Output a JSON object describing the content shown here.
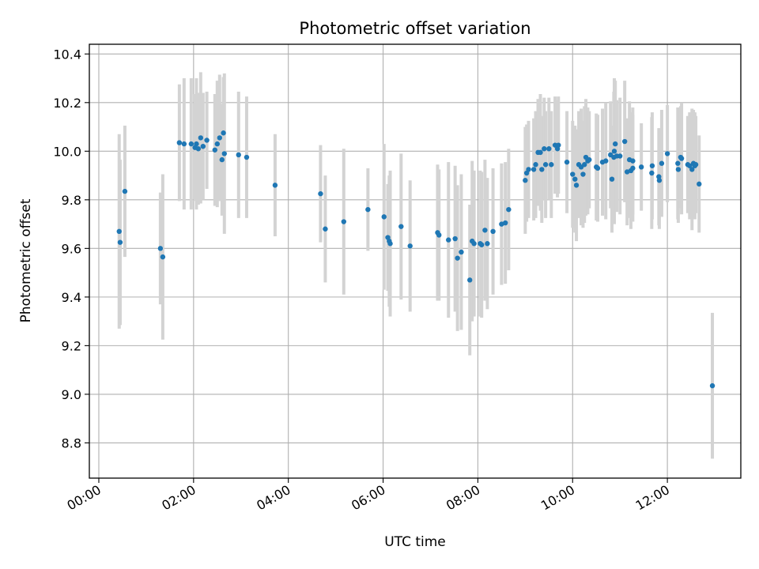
{
  "chart_data": {
    "type": "scatter",
    "title": "Photometric offset variation",
    "xlabel": "UTC time",
    "ylabel": "Photometric offset",
    "x_unit": "hours UTC",
    "xlim": [
      -0.2,
      13.55
    ],
    "ylim": [
      8.655,
      10.44
    ],
    "grid": true,
    "legend": "none",
    "x_tick_labels": [
      "00:00",
      "02:00",
      "04:00",
      "06:00",
      "08:00",
      "10:00",
      "12:00"
    ],
    "y_tick_labels": [
      "8.8",
      "9.0",
      "9.2",
      "9.4",
      "9.6",
      "9.8",
      "10.0",
      "10.2",
      "10.4"
    ],
    "colors": {
      "point": "#1f77b4",
      "errorbar": "#d3d3d3",
      "grid": "#b0b0b0"
    },
    "series": [
      {
        "points": [
          {
            "x": 0.43,
            "y": 9.67,
            "err": 0.4
          },
          {
            "x": 0.45,
            "y": 9.625,
            "err": 0.34
          },
          {
            "x": 0.55,
            "y": 9.835,
            "err": 0.27
          },
          {
            "x": 1.3,
            "y": 9.6,
            "err": 0.23
          },
          {
            "x": 1.35,
            "y": 9.565,
            "err": 0.34
          },
          {
            "x": 1.7,
            "y": 10.035,
            "err": 0.24
          },
          {
            "x": 1.8,
            "y": 10.03,
            "err": 0.27
          },
          {
            "x": 1.95,
            "y": 10.03,
            "err": 0.27
          },
          {
            "x": 2.03,
            "y": 10.015,
            "err": 0.22
          },
          {
            "x": 2.06,
            "y": 10.03,
            "err": 0.27
          },
          {
            "x": 2.1,
            "y": 10.01,
            "err": 0.23
          },
          {
            "x": 2.15,
            "y": 10.055,
            "err": 0.27
          },
          {
            "x": 2.2,
            "y": 10.02,
            "err": 0.22
          },
          {
            "x": 2.28,
            "y": 10.045,
            "err": 0.2
          },
          {
            "x": 2.45,
            "y": 10.005,
            "err": 0.23
          },
          {
            "x": 2.5,
            "y": 10.03,
            "err": 0.26
          },
          {
            "x": 2.55,
            "y": 10.055,
            "err": 0.26
          },
          {
            "x": 2.6,
            "y": 9.965,
            "err": 0.23
          },
          {
            "x": 2.63,
            "y": 10.075,
            "err": 0.23
          },
          {
            "x": 2.65,
            "y": 9.99,
            "err": 0.33
          },
          {
            "x": 2.95,
            "y": 9.985,
            "err": 0.26
          },
          {
            "x": 3.12,
            "y": 9.975,
            "err": 0.25
          },
          {
            "x": 3.72,
            "y": 9.86,
            "err": 0.21
          },
          {
            "x": 4.68,
            "y": 9.825,
            "err": 0.2
          },
          {
            "x": 4.78,
            "y": 9.68,
            "err": 0.22
          },
          {
            "x": 5.17,
            "y": 9.71,
            "err": 0.3
          },
          {
            "x": 5.68,
            "y": 9.76,
            "err": 0.17
          },
          {
            "x": 6.02,
            "y": 9.73,
            "err": 0.3
          },
          {
            "x": 6.1,
            "y": 9.645,
            "err": 0.22
          },
          {
            "x": 6.13,
            "y": 9.63,
            "err": 0.27
          },
          {
            "x": 6.15,
            "y": 9.62,
            "err": 0.3
          },
          {
            "x": 6.38,
            "y": 9.69,
            "err": 0.3
          },
          {
            "x": 6.57,
            "y": 9.61,
            "err": 0.27
          },
          {
            "x": 7.15,
            "y": 9.665,
            "err": 0.28
          },
          {
            "x": 7.18,
            "y": 9.655,
            "err": 0.27
          },
          {
            "x": 7.38,
            "y": 9.635,
            "err": 0.32
          },
          {
            "x": 7.52,
            "y": 9.64,
            "err": 0.3
          },
          {
            "x": 7.57,
            "y": 9.56,
            "err": 0.3
          },
          {
            "x": 7.65,
            "y": 9.585,
            "err": 0.32
          },
          {
            "x": 7.83,
            "y": 9.47,
            "err": 0.31
          },
          {
            "x": 7.88,
            "y": 9.63,
            "err": 0.33
          },
          {
            "x": 7.92,
            "y": 9.62,
            "err": 0.3
          },
          {
            "x": 8.05,
            "y": 9.62,
            "err": 0.3
          },
          {
            "x": 8.08,
            "y": 9.615,
            "err": 0.3
          },
          {
            "x": 8.15,
            "y": 9.675,
            "err": 0.29
          },
          {
            "x": 8.2,
            "y": 9.62,
            "err": 0.27
          },
          {
            "x": 8.32,
            "y": 9.67,
            "err": 0.26
          },
          {
            "x": 8.5,
            "y": 9.7,
            "err": 0.25
          },
          {
            "x": 8.58,
            "y": 9.705,
            "err": 0.25
          },
          {
            "x": 8.65,
            "y": 9.76,
            "err": 0.25
          },
          {
            "x": 9.0,
            "y": 9.88,
            "err": 0.22
          },
          {
            "x": 9.03,
            "y": 9.91,
            "err": 0.2
          },
          {
            "x": 9.07,
            "y": 9.925,
            "err": 0.2
          },
          {
            "x": 9.18,
            "y": 9.925,
            "err": 0.21
          },
          {
            "x": 9.22,
            "y": 9.945,
            "err": 0.22
          },
          {
            "x": 9.27,
            "y": 9.995,
            "err": 0.22
          },
          {
            "x": 9.32,
            "y": 9.995,
            "err": 0.24
          },
          {
            "x": 9.35,
            "y": 9.925,
            "err": 0.22
          },
          {
            "x": 9.4,
            "y": 10.01,
            "err": 0.21
          },
          {
            "x": 9.43,
            "y": 9.945,
            "err": 0.22
          },
          {
            "x": 9.5,
            "y": 10.01,
            "err": 0.21
          },
          {
            "x": 9.55,
            "y": 9.945,
            "err": 0.22
          },
          {
            "x": 9.63,
            "y": 10.025,
            "err": 0.2
          },
          {
            "x": 9.68,
            "y": 10.01,
            "err": 0.2
          },
          {
            "x": 9.7,
            "y": 10.025,
            "err": 0.2
          },
          {
            "x": 9.88,
            "y": 9.955,
            "err": 0.21
          },
          {
            "x": 10.0,
            "y": 9.905,
            "err": 0.22
          },
          {
            "x": 10.05,
            "y": 9.885,
            "err": 0.22
          },
          {
            "x": 10.08,
            "y": 9.86,
            "err": 0.23
          },
          {
            "x": 10.13,
            "y": 9.945,
            "err": 0.22
          },
          {
            "x": 10.18,
            "y": 9.935,
            "err": 0.24
          },
          {
            "x": 10.22,
            "y": 9.905,
            "err": 0.22
          },
          {
            "x": 10.25,
            "y": 9.945,
            "err": 0.24
          },
          {
            "x": 10.28,
            "y": 9.975,
            "err": 0.24
          },
          {
            "x": 10.32,
            "y": 9.96,
            "err": 0.22
          },
          {
            "x": 10.35,
            "y": 9.965,
            "err": 0.2
          },
          {
            "x": 10.5,
            "y": 9.935,
            "err": 0.22
          },
          {
            "x": 10.53,
            "y": 9.93,
            "err": 0.22
          },
          {
            "x": 10.63,
            "y": 9.955,
            "err": 0.22
          },
          {
            "x": 10.7,
            "y": 9.96,
            "err": 0.24
          },
          {
            "x": 10.8,
            "y": 9.985,
            "err": 0.22
          },
          {
            "x": 10.83,
            "y": 9.885,
            "err": 0.22
          },
          {
            "x": 10.87,
            "y": 9.975,
            "err": 0.27
          },
          {
            "x": 10.88,
            "y": 10.0,
            "err": 0.3
          },
          {
            "x": 10.9,
            "y": 10.03,
            "err": 0.26
          },
          {
            "x": 10.93,
            "y": 9.98,
            "err": 0.23
          },
          {
            "x": 11.0,
            "y": 9.98,
            "err": 0.24
          },
          {
            "x": 11.1,
            "y": 10.04,
            "err": 0.25
          },
          {
            "x": 11.15,
            "y": 9.915,
            "err": 0.22
          },
          {
            "x": 11.2,
            "y": 9.965,
            "err": 0.24
          },
          {
            "x": 11.23,
            "y": 9.92,
            "err": 0.24
          },
          {
            "x": 11.27,
            "y": 9.96,
            "err": 0.22
          },
          {
            "x": 11.27,
            "y": 9.93,
            "err": 0.22
          },
          {
            "x": 11.45,
            "y": 9.935,
            "err": 0.18
          },
          {
            "x": 11.67,
            "y": 9.91,
            "err": 0.23
          },
          {
            "x": 11.68,
            "y": 9.94,
            "err": 0.22
          },
          {
            "x": 11.82,
            "y": 9.895,
            "err": 0.2
          },
          {
            "x": 11.83,
            "y": 9.88,
            "err": 0.2
          },
          {
            "x": 11.88,
            "y": 9.95,
            "err": 0.22
          },
          {
            "x": 12.0,
            "y": 9.99,
            "err": 0.2
          },
          {
            "x": 12.22,
            "y": 9.95,
            "err": 0.23
          },
          {
            "x": 12.23,
            "y": 9.925,
            "err": 0.22
          },
          {
            "x": 12.28,
            "y": 9.975,
            "err": 0.21
          },
          {
            "x": 12.3,
            "y": 9.97,
            "err": 0.23
          },
          {
            "x": 12.43,
            "y": 9.945,
            "err": 0.2
          },
          {
            "x": 12.47,
            "y": 9.94,
            "err": 0.22
          },
          {
            "x": 12.52,
            "y": 9.925,
            "err": 0.25
          },
          {
            "x": 12.55,
            "y": 9.95,
            "err": 0.22
          },
          {
            "x": 12.58,
            "y": 9.94,
            "err": 0.22
          },
          {
            "x": 12.6,
            "y": 9.945,
            "err": 0.2
          },
          {
            "x": 12.67,
            "y": 9.865,
            "err": 0.2
          },
          {
            "x": 12.95,
            "y": 9.035,
            "err": 0.3
          }
        ]
      }
    ]
  }
}
